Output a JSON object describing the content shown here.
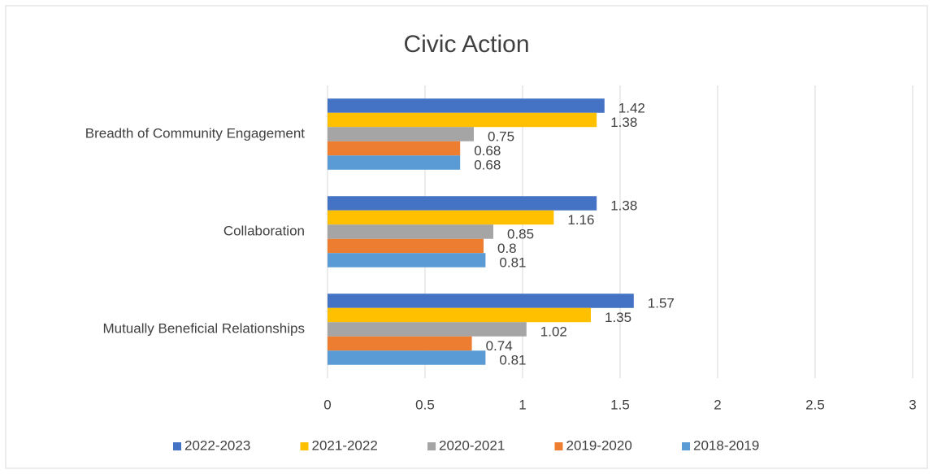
{
  "chart_data": {
    "type": "hbar",
    "title": "Civic Action",
    "categories": [
      "Breadth of Community Engagement",
      "Collaboration",
      "Mutually Beneficial Relationships"
    ],
    "series": [
      {
        "name": "2022-2023",
        "color": "#4472c4",
        "values": [
          1.42,
          1.38,
          1.57
        ]
      },
      {
        "name": "2021-2022",
        "color": "#ffc000",
        "values": [
          1.38,
          1.16,
          1.35
        ]
      },
      {
        "name": "2020-2021",
        "color": "#a5a5a5",
        "values": [
          0.75,
          0.85,
          1.02
        ]
      },
      {
        "name": "2019-2020",
        "color": "#ed7d31",
        "values": [
          0.68,
          0.8,
          0.74
        ]
      },
      {
        "name": "2018-2019",
        "color": "#5b9bd5",
        "values": [
          0.68,
          0.81,
          0.81
        ]
      }
    ],
    "xlim": [
      0,
      3
    ],
    "xticks": [
      0,
      0.5,
      1,
      1.5,
      2,
      2.5,
      3
    ],
    "grid": true,
    "legend": "bottom"
  }
}
